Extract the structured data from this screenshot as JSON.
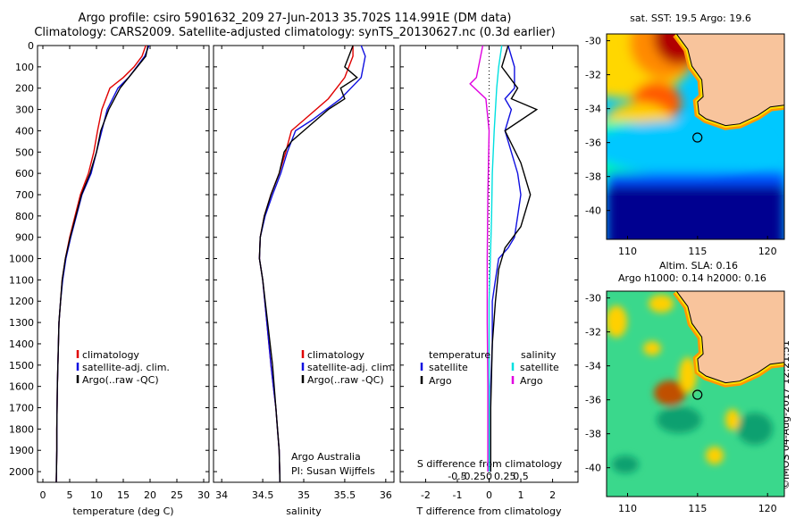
{
  "header": {
    "line1": "Argo profile: csiro 5901632_209 27-Jun-2013 35.702S 114.991E (DM data)",
    "line2": "Climatology: CARS2009. Satellite-adjusted climatology: synTS_20130627.nc (0.3d earlier)"
  },
  "stamp": "©IMOS 04-Aug-2017 12:21:51",
  "colors": {
    "red": "#e00000",
    "blue": "#1010e0",
    "black": "#000000",
    "cyan": "#00e0e0",
    "magenta": "#e000e0",
    "land": "#f8c49c"
  },
  "panels": {
    "temperature": {
      "xlabel": "temperature (deg C)",
      "ticks": [
        "0",
        "5",
        "10",
        "15",
        "20",
        "25",
        "30"
      ]
    },
    "salinity": {
      "xlabel": "salinity",
      "ticks": [
        "34",
        "34.5",
        "35",
        "35.5",
        "36"
      ]
    },
    "diff": {
      "xlabel": "T difference from climatology",
      "top_label": "S difference from climatology",
      "ticks": [
        "-2",
        "-1",
        "0",
        "1",
        "2"
      ],
      "top_ticks": [
        "-0.5",
        "-0.25",
        "0",
        "0.25",
        "0.5"
      ]
    }
  },
  "depth_ticks": [
    "0",
    "100",
    "200",
    "300",
    "400",
    "500",
    "600",
    "700",
    "800",
    "900",
    "1000",
    "1100",
    "1200",
    "1300",
    "1400",
    "1500",
    "1600",
    "1700",
    "1800",
    "1900",
    "2000"
  ],
  "legend": {
    "clim": "climatology",
    "sat": "satellite-adj. clim.",
    "argo": "Argo(..raw -QC)"
  },
  "diff_legend": {
    "temperature": "temperature",
    "salinity": "salinity",
    "satellite": "satellite",
    "argo": "Argo"
  },
  "attribution": {
    "line1": "Argo Australia",
    "line2": "PI: Susan Wijffels"
  },
  "maps": {
    "sst_title": "sat. SST: 19.5 Argo: 19.6",
    "sla_title1": "Altim. SLA: 0.16",
    "sla_title2": "Argo h1000: 0.14 h2000: 0.16",
    "yticks": [
      "-30",
      "-32",
      "-34",
      "-36",
      "-38",
      "-40"
    ],
    "xticks": [
      "110",
      "115",
      "120"
    ],
    "float_lon": 114.991,
    "float_lat": -35.702
  },
  "chart_data": [
    {
      "type": "line",
      "xlabel": "temperature (deg C)",
      "ylabel": "",
      "xlim": [
        -1,
        31
      ],
      "ylim": [
        2050,
        0
      ],
      "series": [
        {
          "name": "climatology",
          "x": [
            19.2,
            18.5,
            17.0,
            15.0,
            12.5,
            11.0,
            10.2,
            9.5,
            8.5,
            7.0,
            5.0,
            4.2,
            3.6,
            3.3,
            3.0,
            2.9,
            2.8,
            2.7,
            2.6,
            2.6,
            2.5
          ],
          "y": [
            0,
            50,
            100,
            150,
            200,
            300,
            400,
            500,
            600,
            700,
            900,
            1000,
            1100,
            1200,
            1300,
            1400,
            1500,
            1600,
            1800,
            1900,
            2050
          ]
        },
        {
          "name": "satellite-adj. clim.",
          "x": [
            19.8,
            19.0,
            17.5,
            16.0,
            14.0,
            12.0,
            11.0,
            10.0,
            9.0,
            7.3,
            5.2,
            4.3,
            3.7,
            3.3,
            3.0,
            2.9,
            2.8,
            2.7,
            2.6,
            2.6,
            2.5
          ],
          "y": [
            0,
            50,
            100,
            150,
            200,
            300,
            400,
            500,
            600,
            700,
            900,
            1000,
            1100,
            1200,
            1300,
            1400,
            1500,
            1600,
            1800,
            1900,
            2050
          ]
        },
        {
          "name": "Argo(..raw -QC)",
          "x": [
            19.6,
            19.2,
            17.6,
            16.0,
            14.4,
            12.3,
            10.8,
            10.0,
            8.8,
            7.2,
            5.1,
            4.2,
            3.6,
            3.3,
            3.0,
            2.9,
            2.8,
            2.7,
            2.6,
            2.6,
            2.5
          ],
          "y": [
            0,
            50,
            100,
            150,
            200,
            300,
            400,
            500,
            600,
            700,
            900,
            1000,
            1100,
            1200,
            1300,
            1400,
            1500,
            1600,
            1800,
            1900,
            2050
          ]
        }
      ]
    },
    {
      "type": "line",
      "xlabel": "salinity",
      "ylabel": "",
      "xlim": [
        33.9,
        36.1
      ],
      "ylim": [
        2050,
        0
      ],
      "series": [
        {
          "name": "climatology",
          "x": [
            35.6,
            35.6,
            35.5,
            35.3,
            35.0,
            34.85,
            34.78,
            34.7,
            34.6,
            34.52,
            34.47,
            34.46,
            34.5,
            34.55,
            34.6,
            34.63,
            34.66,
            34.68,
            34.7,
            34.71
          ],
          "y": [
            0,
            50,
            150,
            250,
            350,
            400,
            500,
            600,
            700,
            800,
            900,
            1000,
            1100,
            1300,
            1500,
            1600,
            1700,
            1800,
            1900,
            2050
          ]
        },
        {
          "name": "satellite-adj. clim.",
          "x": [
            35.7,
            35.75,
            35.7,
            35.45,
            35.1,
            34.9,
            34.8,
            34.72,
            34.62,
            34.53,
            34.47,
            34.46,
            34.5,
            34.55,
            34.6,
            34.63,
            34.66,
            34.68,
            34.7,
            34.71
          ],
          "y": [
            0,
            50,
            150,
            250,
            350,
            400,
            500,
            600,
            700,
            800,
            900,
            1000,
            1100,
            1300,
            1500,
            1600,
            1700,
            1800,
            1900,
            2050
          ]
        },
        {
          "name": "Argo(..raw -QC)",
          "x": [
            35.6,
            35.5,
            35.65,
            35.45,
            35.5,
            35.3,
            35.0,
            34.85,
            34.76,
            34.7,
            34.6,
            34.52,
            34.47,
            34.46,
            34.5,
            34.56,
            34.62,
            34.66,
            34.7,
            34.71
          ],
          "y": [
            0,
            100,
            150,
            200,
            250,
            300,
            400,
            450,
            500,
            600,
            700,
            800,
            900,
            1000,
            1100,
            1300,
            1500,
            1700,
            1900,
            2050
          ]
        }
      ]
    },
    {
      "type": "line",
      "xlabel": "T difference from climatology",
      "ylabel": "",
      "xlim": [
        -2.8,
        2.8
      ],
      "ylim": [
        2050,
        0
      ],
      "series": [
        {
          "name": "temperature satellite",
          "x": [
            0.6,
            0.8,
            0.8,
            0.5,
            0.7,
            0.5,
            0.7,
            0.9,
            1.0,
            0.9,
            0.8,
            0.6,
            0.3,
            0.2,
            0.1,
            0.1,
            0.05,
            0.05,
            0.05
          ],
          "y": [
            0,
            100,
            200,
            250,
            300,
            400,
            500,
            600,
            700,
            800,
            900,
            950,
            1000,
            1100,
            1200,
            1400,
            1600,
            1800,
            2000
          ]
        },
        {
          "name": "temperature Argo",
          "x": [
            0.6,
            0.4,
            0.9,
            0.7,
            1.5,
            0.5,
            1.0,
            1.3,
            1.0,
            0.5,
            0.3,
            0.2,
            0.1,
            0.05,
            0.05
          ],
          "y": [
            0,
            100,
            200,
            250,
            300,
            400,
            550,
            700,
            850,
            950,
            1050,
            1200,
            1400,
            1700,
            2000
          ]
        },
        {
          "name": "salinity satellite",
          "x": [
            0.2,
            0.15,
            0.12,
            0.1,
            0.08,
            0.05,
            0.04,
            0.02,
            0.0,
            0.0,
            0.0,
            0.0
          ],
          "y": [
            0,
            100,
            200,
            300,
            400,
            600,
            800,
            1000,
            1200,
            1500,
            1800,
            2000
          ]
        },
        {
          "name": "salinity Argo",
          "x": [
            -0.1,
            -0.2,
            -0.3,
            -0.05,
            0.0,
            -0.02,
            -0.03,
            -0.03,
            -0.02,
            -0.02
          ],
          "y": [
            0,
            150,
            180,
            250,
            400,
            700,
            1000,
            1300,
            1600,
            2000
          ]
        }
      ]
    }
  ]
}
